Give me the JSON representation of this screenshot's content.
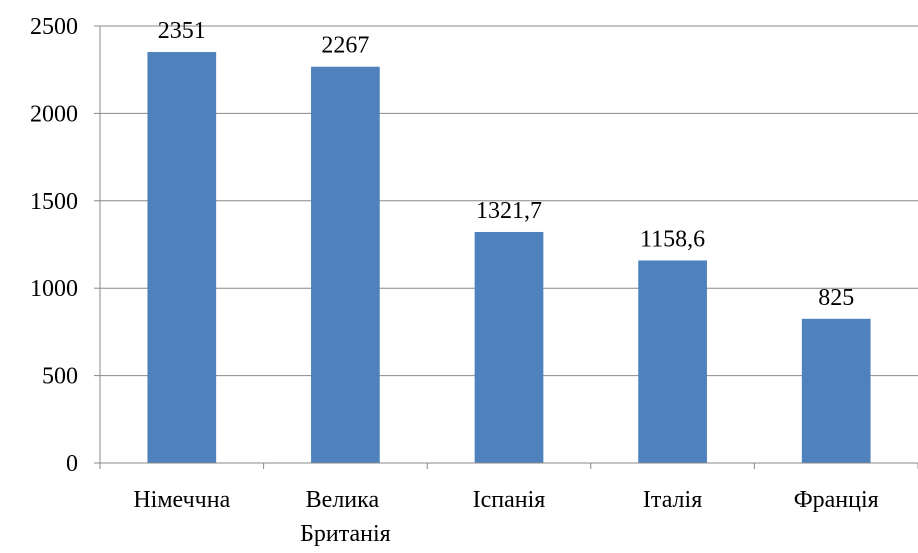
{
  "chart_data": {
    "type": "bar",
    "categories": [
      "Німеччна",
      "Велика Британія",
      "Іспанія",
      "Італія",
      "Франція"
    ],
    "values": [
      2351,
      2267,
      1321.7,
      1158.6,
      825
    ],
    "value_labels": [
      "2351",
      "2267",
      "1321,7",
      "1158,6",
      "825"
    ],
    "color": "#4f81bd",
    "ylim": [
      0,
      2500
    ],
    "yticks": [
      0,
      500,
      1000,
      1500,
      2000,
      2500
    ],
    "grid": true
  }
}
